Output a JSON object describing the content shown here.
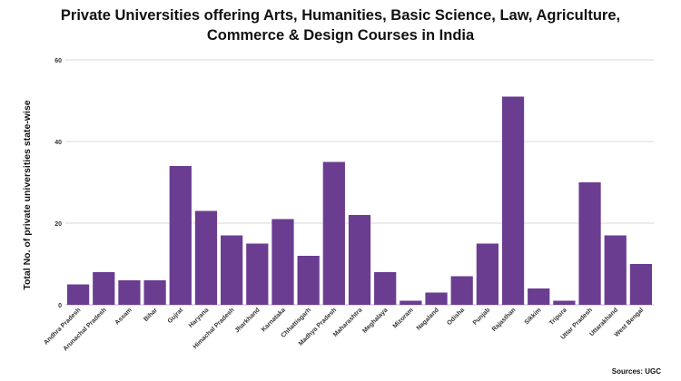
{
  "title_line1": "Private Universities offering Arts, Humanities, Basic Science, Law, Agriculture,",
  "title_line2": "Commerce & Design Courses in India",
  "source": "Sources: UGC",
  "chart_data": {
    "type": "bar",
    "title": "Private Universities offering Arts, Humanities, Basic Science, Law, Agriculture, Commerce & Design Courses in India",
    "xlabel": "",
    "ylabel": "Total No. of private universities state-wise",
    "ylim": [
      0,
      60
    ],
    "yticks": [
      0,
      20,
      40,
      60
    ],
    "grid": true,
    "bar_color": "#6a3d91",
    "categories": [
      "Andhra Pradesh",
      "Arunachal Pradesh",
      "Assam",
      "Bihar",
      "Gujrat",
      "Haryana",
      "Himachal Pradesh",
      "Jharkhand",
      "Karnataka",
      "Chhattisgarh",
      "Madhya Pradesh",
      "Maharashtra",
      "Meghalaya",
      "Mizoram",
      "Nagaland",
      "Odisha",
      "Punjab",
      "Rajasthan",
      "Sikkim",
      "Tripura",
      "Uttar Pradesh",
      "Uttarakhand",
      "West Bengal"
    ],
    "values": [
      5,
      8,
      6,
      6,
      34,
      23,
      17,
      15,
      21,
      12,
      35,
      22,
      8,
      1,
      3,
      7,
      15,
      51,
      4,
      1,
      30,
      17,
      10
    ]
  }
}
